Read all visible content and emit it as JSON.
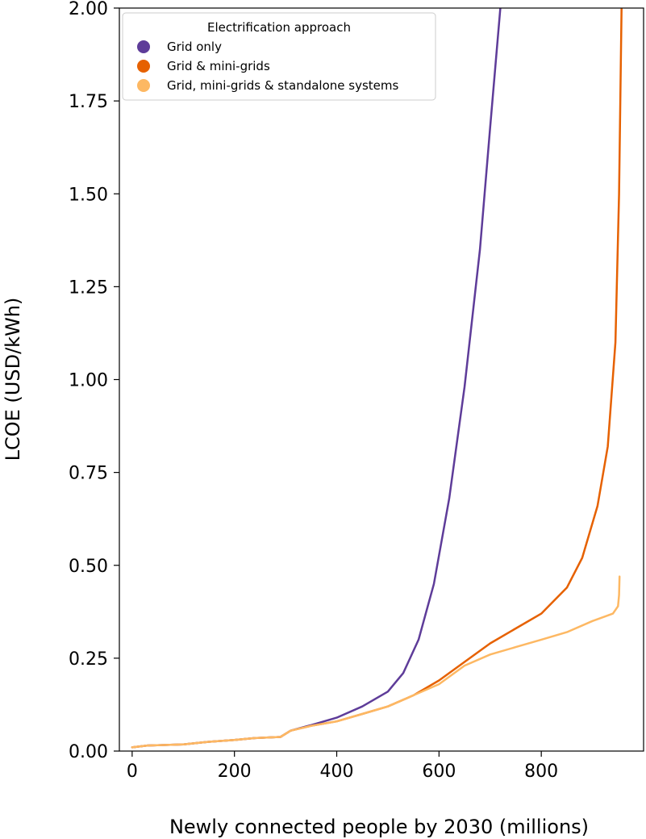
{
  "chart_data": {
    "type": "line",
    "xlabel": "Newly connected people by 2030 (millions)",
    "ylabel": "LCOE (USD/kWh)",
    "xlim": [
      -25,
      1000
    ],
    "ylim": [
      0,
      2.0
    ],
    "xticks": [
      0,
      200,
      400,
      600,
      800
    ],
    "xtick_labels": [
      "0",
      "200",
      "400",
      "600",
      "800"
    ],
    "yticks": [
      0,
      0.25,
      0.5,
      0.75,
      1.0,
      1.25,
      1.5,
      1.75,
      2.0
    ],
    "ytick_labels": [
      "0.00",
      "0.25",
      "0.50",
      "0.75",
      "1.00",
      "1.25",
      "1.50",
      "1.75",
      "2.00"
    ],
    "grid": false,
    "legend": {
      "title": "Electrification approach",
      "placement": "top-left"
    },
    "series": [
      {
        "name": "Grid only",
        "color": "#5e3c99",
        "points": [
          [
            0,
            0.01
          ],
          [
            30,
            0.015
          ],
          [
            100,
            0.018
          ],
          [
            150,
            0.025
          ],
          [
            200,
            0.03
          ],
          [
            240,
            0.035
          ],
          [
            290,
            0.038
          ],
          [
            310,
            0.055
          ],
          [
            350,
            0.07
          ],
          [
            400,
            0.09
          ],
          [
            450,
            0.12
          ],
          [
            500,
            0.16
          ],
          [
            530,
            0.21
          ],
          [
            560,
            0.3
          ],
          [
            590,
            0.45
          ],
          [
            620,
            0.68
          ],
          [
            650,
            0.98
          ],
          [
            680,
            1.35
          ],
          [
            700,
            1.68
          ],
          [
            720,
            2.0
          ]
        ]
      },
      {
        "name": "Grid & mini-grids",
        "color": "#e66101",
        "points": [
          [
            0,
            0.01
          ],
          [
            30,
            0.015
          ],
          [
            100,
            0.018
          ],
          [
            150,
            0.025
          ],
          [
            200,
            0.03
          ],
          [
            240,
            0.035
          ],
          [
            290,
            0.038
          ],
          [
            310,
            0.055
          ],
          [
            350,
            0.068
          ],
          [
            400,
            0.08
          ],
          [
            450,
            0.1
          ],
          [
            500,
            0.12
          ],
          [
            550,
            0.15
          ],
          [
            600,
            0.19
          ],
          [
            650,
            0.24
          ],
          [
            700,
            0.29
          ],
          [
            750,
            0.33
          ],
          [
            800,
            0.37
          ],
          [
            850,
            0.44
          ],
          [
            880,
            0.52
          ],
          [
            910,
            0.66
          ],
          [
            930,
            0.82
          ],
          [
            945,
            1.1
          ],
          [
            952,
            1.5
          ],
          [
            957,
            2.0
          ]
        ]
      },
      {
        "name": "Grid, mini-grids & standalone systems",
        "color": "#fdb863",
        "points": [
          [
            0,
            0.01
          ],
          [
            30,
            0.015
          ],
          [
            100,
            0.018
          ],
          [
            150,
            0.025
          ],
          [
            200,
            0.03
          ],
          [
            240,
            0.035
          ],
          [
            290,
            0.038
          ],
          [
            310,
            0.055
          ],
          [
            350,
            0.068
          ],
          [
            400,
            0.08
          ],
          [
            450,
            0.1
          ],
          [
            500,
            0.12
          ],
          [
            550,
            0.15
          ],
          [
            600,
            0.18
          ],
          [
            650,
            0.23
          ],
          [
            700,
            0.26
          ],
          [
            750,
            0.28
          ],
          [
            800,
            0.3
          ],
          [
            850,
            0.32
          ],
          [
            900,
            0.35
          ],
          [
            940,
            0.37
          ],
          [
            950,
            0.39
          ],
          [
            952,
            0.42
          ],
          [
            953,
            0.47
          ]
        ]
      }
    ]
  }
}
